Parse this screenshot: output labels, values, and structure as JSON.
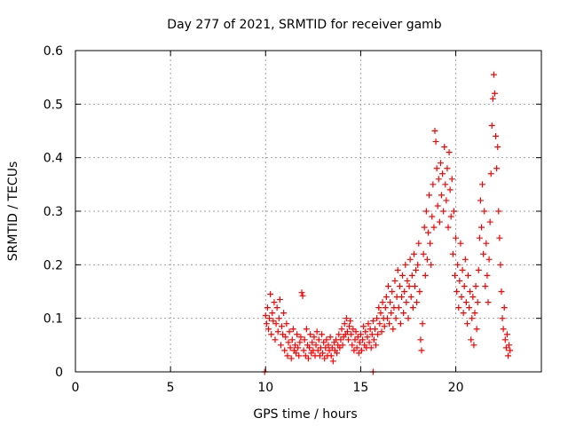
{
  "chart_data": {
    "type": "scatter",
    "title": "Day 277 of 2021, SRMTID for receiver gamb",
    "xlabel": "GPS time / hours",
    "ylabel": "SRMTID / TECUs",
    "xlim": [
      0,
      24.5
    ],
    "ylim": [
      0,
      0.6
    ],
    "x_ticks": [
      0,
      5,
      10,
      15,
      20
    ],
    "y_ticks": [
      0,
      0.1,
      0.2,
      0.3,
      0.4,
      0.5,
      0.6
    ],
    "x_tick_labels": [
      "0",
      "5",
      "10",
      "15",
      "20"
    ],
    "y_tick_labels": [
      "0",
      "0.1",
      "0.2",
      "0.3",
      "0.4",
      "0.5",
      "0.6"
    ],
    "grid": true,
    "marker": "plus",
    "marker_color": "#ff0000",
    "series": [
      {
        "name": "SRMTID",
        "points": [
          [
            9.95,
            0.0
          ],
          [
            15.65,
            0.0
          ],
          [
            10.0,
            0.105
          ],
          [
            10.05,
            0.09
          ],
          [
            10.1,
            0.12
          ],
          [
            10.15,
            0.08
          ],
          [
            10.2,
            0.1
          ],
          [
            10.25,
            0.145
          ],
          [
            10.3,
            0.07
          ],
          [
            10.35,
            0.11
          ],
          [
            10.4,
            0.095
          ],
          [
            10.45,
            0.13
          ],
          [
            10.5,
            0.06
          ],
          [
            10.55,
            0.09
          ],
          [
            10.6,
            0.12
          ],
          [
            10.65,
            0.075
          ],
          [
            10.7,
            0.1
          ],
          [
            10.75,
            0.135
          ],
          [
            10.8,
            0.05
          ],
          [
            10.85,
            0.085
          ],
          [
            10.9,
            0.07
          ],
          [
            10.95,
            0.11
          ],
          [
            11.0,
            0.04
          ],
          [
            11.05,
            0.065
          ],
          [
            11.1,
            0.09
          ],
          [
            11.15,
            0.03
          ],
          [
            11.2,
            0.055
          ],
          [
            11.25,
            0.075
          ],
          [
            11.3,
            0.045
          ],
          [
            11.35,
            0.025
          ],
          [
            11.4,
            0.06
          ],
          [
            11.45,
            0.08
          ],
          [
            11.5,
            0.04
          ],
          [
            11.55,
            0.05
          ],
          [
            11.6,
            0.035
          ],
          [
            11.65,
            0.07
          ],
          [
            11.7,
            0.045
          ],
          [
            11.75,
            0.03
          ],
          [
            11.8,
            0.055
          ],
          [
            11.85,
            0.065
          ],
          [
            11.9,
            0.148
          ],
          [
            11.95,
            0.142
          ],
          [
            12.0,
            0.04
          ],
          [
            12.05,
            0.06
          ],
          [
            12.1,
            0.03
          ],
          [
            12.15,
            0.08
          ],
          [
            12.2,
            0.05
          ],
          [
            12.25,
            0.025
          ],
          [
            12.3,
            0.045
          ],
          [
            12.35,
            0.07
          ],
          [
            12.4,
            0.035
          ],
          [
            12.45,
            0.055
          ],
          [
            12.5,
            0.04
          ],
          [
            12.55,
            0.065
          ],
          [
            12.6,
            0.03
          ],
          [
            12.65,
            0.05
          ],
          [
            12.7,
            0.075
          ],
          [
            12.75,
            0.04
          ],
          [
            12.8,
            0.06
          ],
          [
            12.85,
            0.03
          ],
          [
            12.9,
            0.045
          ],
          [
            12.95,
            0.07
          ],
          [
            13.0,
            0.035
          ],
          [
            13.05,
            0.055
          ],
          [
            13.1,
            0.025
          ],
          [
            13.15,
            0.045
          ],
          [
            13.2,
            0.06
          ],
          [
            13.25,
            0.03
          ],
          [
            13.3,
            0.05
          ],
          [
            13.35,
            0.04
          ],
          [
            13.4,
            0.065
          ],
          [
            13.45,
            0.03
          ],
          [
            13.5,
            0.045
          ],
          [
            13.55,
            0.02
          ],
          [
            13.6,
            0.055
          ],
          [
            13.65,
            0.04
          ],
          [
            13.7,
            0.06
          ],
          [
            13.75,
            0.035
          ],
          [
            13.8,
            0.05
          ],
          [
            13.85,
            0.07
          ],
          [
            13.9,
            0.045
          ],
          [
            13.95,
            0.06
          ],
          [
            14.0,
            0.08
          ],
          [
            14.05,
            0.05
          ],
          [
            14.1,
            0.065
          ],
          [
            14.15,
            0.09
          ],
          [
            14.2,
            0.07
          ],
          [
            14.25,
            0.1
          ],
          [
            14.3,
            0.075
          ],
          [
            14.35,
            0.06
          ],
          [
            14.4,
            0.085
          ],
          [
            14.45,
            0.095
          ],
          [
            14.5,
            0.07
          ],
          [
            14.55,
            0.05
          ],
          [
            14.6,
            0.08
          ],
          [
            14.65,
            0.04
          ],
          [
            14.7,
            0.06
          ],
          [
            14.75,
            0.075
          ],
          [
            14.8,
            0.045
          ],
          [
            14.85,
            0.065
          ],
          [
            14.9,
            0.035
          ],
          [
            14.95,
            0.055
          ],
          [
            15.0,
            0.07
          ],
          [
            15.05,
            0.04
          ],
          [
            15.1,
            0.06
          ],
          [
            15.15,
            0.085
          ],
          [
            15.2,
            0.05
          ],
          [
            15.25,
            0.075
          ],
          [
            15.3,
            0.045
          ],
          [
            15.35,
            0.065
          ],
          [
            15.4,
            0.09
          ],
          [
            15.45,
            0.055
          ],
          [
            15.5,
            0.08
          ],
          [
            15.55,
            0.045
          ],
          [
            15.6,
            0.07
          ],
          [
            15.65,
            0.095
          ],
          [
            15.7,
            0.06
          ],
          [
            15.75,
            0.08
          ],
          [
            15.8,
            0.05
          ],
          [
            15.85,
            0.1
          ],
          [
            15.9,
            0.07
          ],
          [
            15.95,
            0.12
          ],
          [
            16.0,
            0.09
          ],
          [
            16.05,
            0.11
          ],
          [
            16.1,
            0.075
          ],
          [
            16.15,
            0.13
          ],
          [
            16.2,
            0.1
          ],
          [
            16.25,
            0.085
          ],
          [
            16.3,
            0.12
          ],
          [
            16.35,
            0.14
          ],
          [
            16.4,
            0.1
          ],
          [
            16.45,
            0.16
          ],
          [
            16.5,
            0.09
          ],
          [
            16.55,
            0.13
          ],
          [
            16.6,
            0.11
          ],
          [
            16.65,
            0.15
          ],
          [
            16.7,
            0.08
          ],
          [
            16.75,
            0.12
          ],
          [
            16.8,
            0.17
          ],
          [
            16.85,
            0.1
          ],
          [
            16.9,
            0.14
          ],
          [
            16.95,
            0.19
          ],
          [
            17.0,
            0.12
          ],
          [
            17.05,
            0.16
          ],
          [
            17.1,
            0.09
          ],
          [
            17.15,
            0.14
          ],
          [
            17.2,
            0.18
          ],
          [
            17.25,
            0.11
          ],
          [
            17.3,
            0.15
          ],
          [
            17.35,
            0.2
          ],
          [
            17.4,
            0.13
          ],
          [
            17.45,
            0.17
          ],
          [
            17.5,
            0.1
          ],
          [
            17.55,
            0.16
          ],
          [
            17.6,
            0.21
          ],
          [
            17.65,
            0.14
          ],
          [
            17.7,
            0.18
          ],
          [
            17.75,
            0.12
          ],
          [
            17.8,
            0.22
          ],
          [
            17.85,
            0.16
          ],
          [
            17.9,
            0.19
          ],
          [
            17.95,
            0.13
          ],
          [
            18.0,
            0.2
          ],
          [
            18.05,
            0.24
          ],
          [
            18.1,
            0.15
          ],
          [
            18.15,
            0.06
          ],
          [
            18.2,
            0.04
          ],
          [
            18.25,
            0.09
          ],
          [
            18.3,
            0.22
          ],
          [
            18.35,
            0.27
          ],
          [
            18.4,
            0.18
          ],
          [
            18.45,
            0.3
          ],
          [
            18.5,
            0.21
          ],
          [
            18.55,
            0.26
          ],
          [
            18.6,
            0.33
          ],
          [
            18.65,
            0.24
          ],
          [
            18.7,
            0.2
          ],
          [
            18.75,
            0.29
          ],
          [
            18.8,
            0.35
          ],
          [
            18.85,
            0.27
          ],
          [
            18.9,
            0.45
          ],
          [
            18.95,
            0.43
          ],
          [
            19.0,
            0.38
          ],
          [
            19.05,
            0.31
          ],
          [
            19.1,
            0.36
          ],
          [
            19.15,
            0.28
          ],
          [
            19.2,
            0.39
          ],
          [
            19.25,
            0.33
          ],
          [
            19.3,
            0.37
          ],
          [
            19.35,
            0.3
          ],
          [
            19.4,
            0.42
          ],
          [
            19.45,
            0.35
          ],
          [
            19.5,
            0.32
          ],
          [
            19.55,
            0.38
          ],
          [
            19.6,
            0.27
          ],
          [
            19.65,
            0.41
          ],
          [
            19.7,
            0.34
          ],
          [
            19.75,
            0.29
          ],
          [
            19.8,
            0.36
          ],
          [
            19.85,
            0.22
          ],
          [
            19.9,
            0.3
          ],
          [
            19.95,
            0.18
          ],
          [
            20.0,
            0.25
          ],
          [
            20.05,
            0.15
          ],
          [
            20.1,
            0.2
          ],
          [
            20.15,
            0.12
          ],
          [
            20.2,
            0.17
          ],
          [
            20.25,
            0.24
          ],
          [
            20.3,
            0.14
          ],
          [
            20.35,
            0.19
          ],
          [
            20.4,
            0.11
          ],
          [
            20.45,
            0.16
          ],
          [
            20.5,
            0.21
          ],
          [
            20.55,
            0.13
          ],
          [
            20.6,
            0.09
          ],
          [
            20.65,
            0.18
          ],
          [
            20.7,
            0.12
          ],
          [
            20.75,
            0.15
          ],
          [
            20.8,
            0.06
          ],
          [
            20.85,
            0.1
          ],
          [
            20.9,
            0.14
          ],
          [
            20.95,
            0.05
          ],
          [
            21.0,
            0.11
          ],
          [
            21.05,
            0.16
          ],
          [
            21.1,
            0.08
          ],
          [
            21.15,
            0.13
          ],
          [
            21.2,
            0.19
          ],
          [
            21.25,
            0.25
          ],
          [
            21.3,
            0.32
          ],
          [
            21.35,
            0.27
          ],
          [
            21.4,
            0.35
          ],
          [
            21.45,
            0.22
          ],
          [
            21.5,
            0.3
          ],
          [
            21.55,
            0.16
          ],
          [
            21.6,
            0.24
          ],
          [
            21.65,
            0.18
          ],
          [
            21.7,
            0.13
          ],
          [
            21.75,
            0.21
          ],
          [
            21.8,
            0.28
          ],
          [
            21.85,
            0.37
          ],
          [
            21.9,
            0.46
          ],
          [
            21.95,
            0.51
          ],
          [
            22.0,
            0.555
          ],
          [
            22.05,
            0.52
          ],
          [
            22.1,
            0.44
          ],
          [
            22.15,
            0.38
          ],
          [
            22.2,
            0.42
          ],
          [
            22.25,
            0.3
          ],
          [
            22.3,
            0.25
          ],
          [
            22.35,
            0.2
          ],
          [
            22.4,
            0.15
          ],
          [
            22.45,
            0.1
          ],
          [
            22.5,
            0.08
          ],
          [
            22.55,
            0.12
          ],
          [
            22.6,
            0.06
          ],
          [
            22.65,
            0.045
          ],
          [
            22.7,
            0.07
          ],
          [
            22.75,
            0.03
          ],
          [
            22.8,
            0.05
          ],
          [
            22.85,
            0.04
          ]
        ]
      }
    ]
  }
}
